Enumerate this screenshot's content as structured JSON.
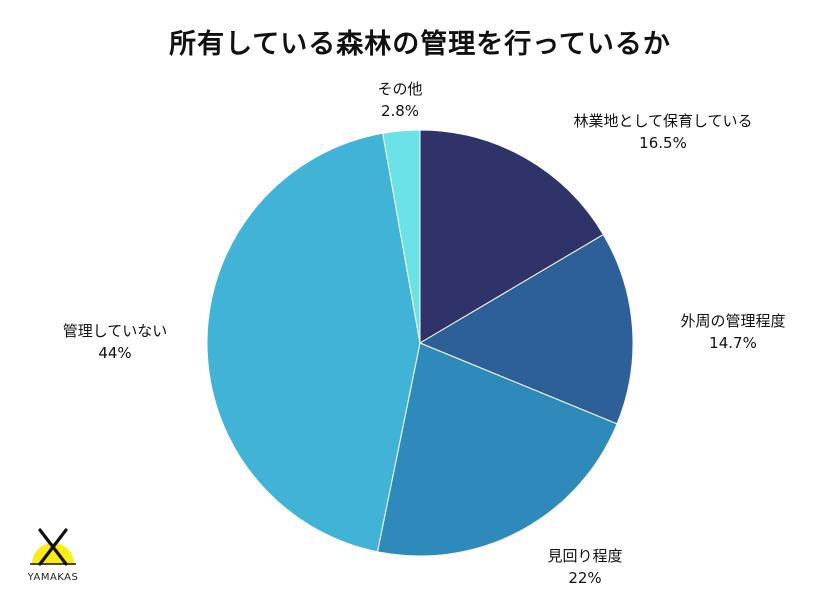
{
  "title": "所有している森林の管理を行っているか",
  "chart_data": {
    "type": "pie",
    "title": "所有している森林の管理を行っているか",
    "start_angle_deg": 0,
    "direction": "clockwise",
    "slices": [
      {
        "label": "林業地として保育している",
        "value": 16.5,
        "display": "16.5%",
        "color": "#2f3369"
      },
      {
        "label": "外周の管理程度",
        "value": 14.7,
        "display": "14.7%",
        "color": "#2d5f99"
      },
      {
        "label": "見回り程度",
        "value": 22,
        "display": "22%",
        "color": "#2e8abb"
      },
      {
        "label": "管理していない",
        "value": 44,
        "display": "44%",
        "color": "#40b3d7"
      },
      {
        "label": "その他",
        "value": 2.8,
        "display": "2.8%",
        "color": "#6ae2e7"
      }
    ]
  },
  "logo": {
    "text": "YAMAKAS",
    "accent_color": "#f7ec13"
  }
}
